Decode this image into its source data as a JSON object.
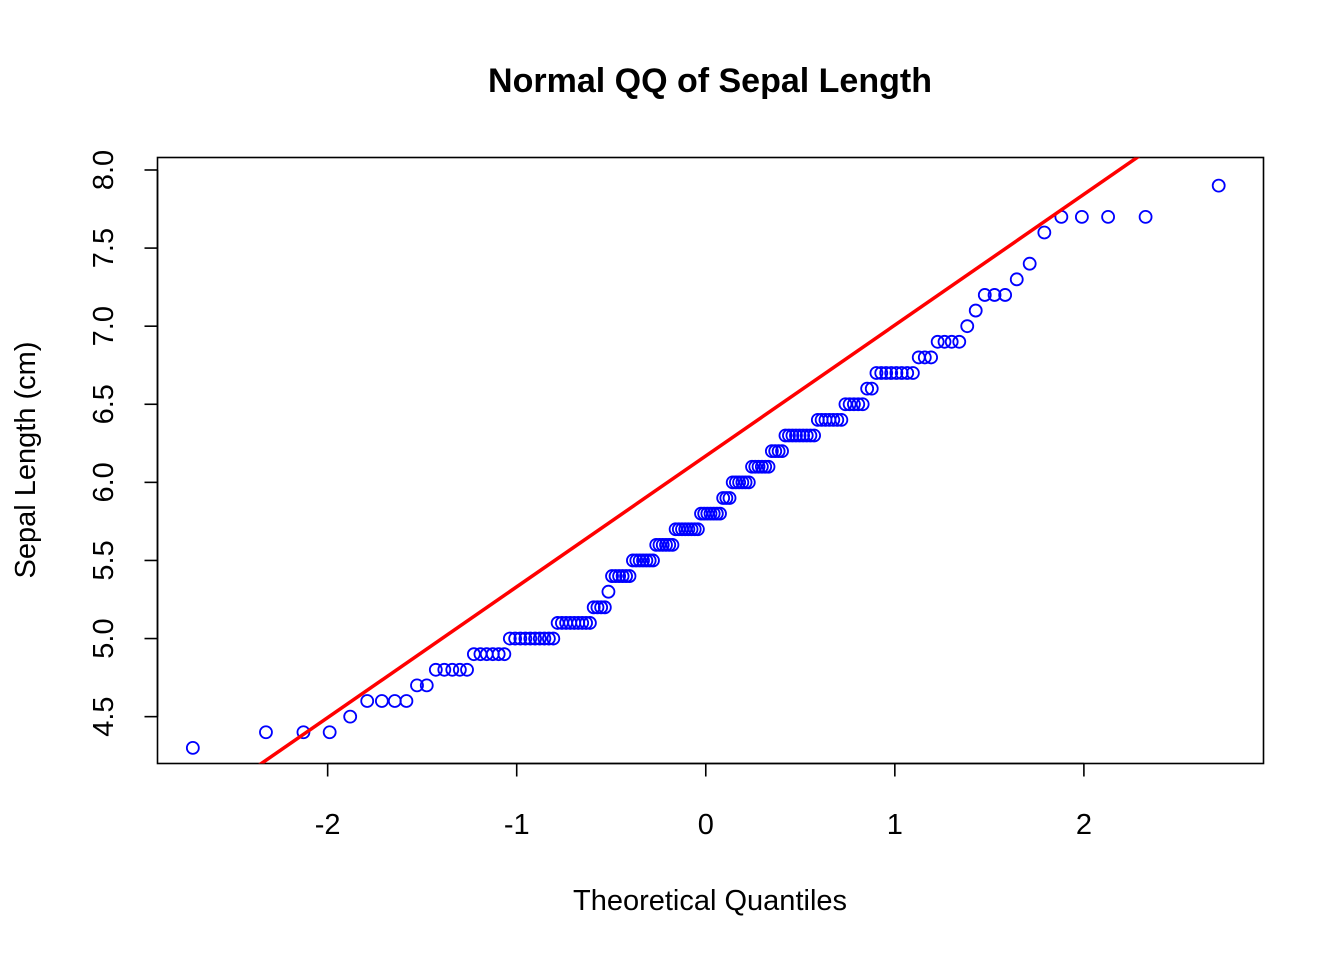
{
  "chart_data": {
    "type": "scatter",
    "title": "Normal QQ of Sepal Length",
    "xlabel": "Theoretical Quantiles",
    "ylabel": "Sepal Length (cm)",
    "xlim": [
      -2.9,
      2.95
    ],
    "ylim": [
      4.2,
      8.08
    ],
    "x_ticks": [
      -2,
      -1,
      0,
      1,
      2
    ],
    "x_tick_labels": [
      "-2",
      "-1",
      "0",
      "1",
      "2"
    ],
    "y_ticks": [
      4.5,
      5.0,
      5.5,
      6.0,
      6.5,
      7.0,
      7.5,
      8.0
    ],
    "y_tick_labels": [
      "4.5",
      "5.0",
      "5.5",
      "6.0",
      "6.5",
      "7.0",
      "7.5",
      "8.0"
    ],
    "grid": false,
    "point_color": "#0000ff",
    "line_color": "#ff0000",
    "sample_values": [
      4.3,
      4.4,
      4.4,
      4.4,
      4.5,
      4.6,
      4.6,
      4.6,
      4.6,
      4.7,
      4.7,
      4.8,
      4.8,
      4.8,
      4.8,
      4.8,
      4.9,
      4.9,
      4.9,
      4.9,
      4.9,
      4.9,
      5.0,
      5.0,
      5.0,
      5.0,
      5.0,
      5.0,
      5.0,
      5.0,
      5.0,
      5.0,
      5.1,
      5.1,
      5.1,
      5.1,
      5.1,
      5.1,
      5.1,
      5.1,
      5.1,
      5.2,
      5.2,
      5.2,
      5.2,
      5.3,
      5.4,
      5.4,
      5.4,
      5.4,
      5.4,
      5.4,
      5.5,
      5.5,
      5.5,
      5.5,
      5.5,
      5.5,
      5.5,
      5.6,
      5.6,
      5.6,
      5.6,
      5.6,
      5.6,
      5.7,
      5.7,
      5.7,
      5.7,
      5.7,
      5.7,
      5.7,
      5.7,
      5.8,
      5.8,
      5.8,
      5.8,
      5.8,
      5.8,
      5.8,
      5.9,
      5.9,
      5.9,
      6.0,
      6.0,
      6.0,
      6.0,
      6.0,
      6.0,
      6.1,
      6.1,
      6.1,
      6.1,
      6.1,
      6.1,
      6.2,
      6.2,
      6.2,
      6.2,
      6.3,
      6.3,
      6.3,
      6.3,
      6.3,
      6.3,
      6.3,
      6.3,
      6.3,
      6.4,
      6.4,
      6.4,
      6.4,
      6.4,
      6.4,
      6.4,
      6.5,
      6.5,
      6.5,
      6.5,
      6.5,
      6.6,
      6.6,
      6.7,
      6.7,
      6.7,
      6.7,
      6.7,
      6.7,
      6.7,
      6.7,
      6.8,
      6.8,
      6.8,
      6.9,
      6.9,
      6.9,
      6.9,
      7.0,
      7.1,
      7.2,
      7.2,
      7.2,
      7.3,
      7.4,
      7.6,
      7.7,
      7.7,
      7.7,
      7.7,
      7.9
    ],
    "reference_line": {
      "x1": -2.9,
      "y1": 3.74,
      "x2": 2.95,
      "y2": 8.64
    }
  }
}
